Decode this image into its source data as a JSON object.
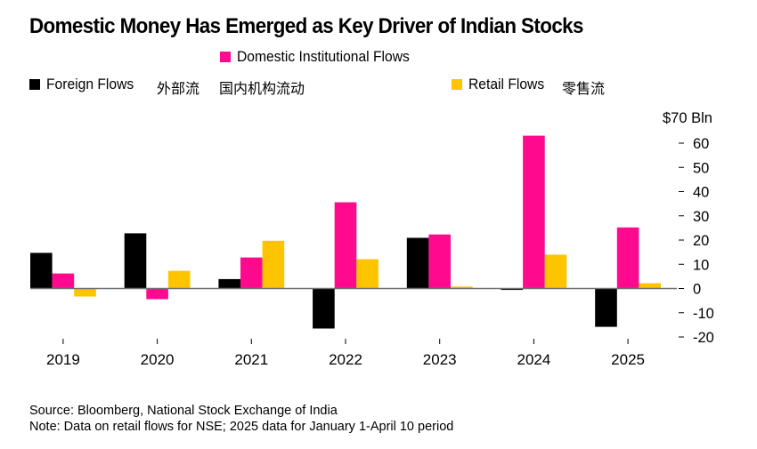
{
  "chart_data": {
    "type": "bar",
    "title": "Domestic Money Has Emerged as Key Driver of Indian Stocks",
    "categories": [
      "2019",
      "2020",
      "2021",
      "2022",
      "2023",
      "2024",
      "2025"
    ],
    "series": [
      {
        "name": "Foreign Flows",
        "name_cn": "外部流",
        "color": "#000000",
        "values": [
          14.7,
          22.8,
          3.9,
          -16.5,
          20.9,
          -0.6,
          -15.8
        ]
      },
      {
        "name": "Domestic Institutional Flows",
        "name_cn": "国内机构流动",
        "color": "#ff0a8f",
        "values": [
          6.2,
          -4.4,
          12.8,
          35.6,
          22.3,
          63.1,
          25.2
        ]
      },
      {
        "name": "Retail Flows",
        "name_cn": "零售流",
        "color": "#ffc400",
        "values": [
          -3.3,
          7.3,
          19.7,
          12.1,
          0.8,
          14.0,
          2.2
        ]
      }
    ],
    "xlabel": "",
    "ylabel": "$ Bln",
    "y_top_label": "$70 Bln",
    "ylim": [
      -20,
      70
    ],
    "yticks": [
      60,
      50,
      40,
      30,
      20,
      10,
      0,
      -10,
      -20
    ],
    "ytick_labels": [
      "60",
      "50",
      "40",
      "30",
      "20",
      "10",
      "0",
      "-10",
      "-20"
    ],
    "y_axis_side": "right",
    "grid": false,
    "legend_position": "top"
  },
  "legend": {
    "domestic": "Domestic Institutional Flows",
    "foreign": "Foreign Flows",
    "foreign_cn": "外部流",
    "domestic_cn": "国内机构流动",
    "retail": "Retail Flows",
    "retail_cn": "零售流"
  },
  "footer": {
    "source": "Source: Bloomberg, National Stock Exchange of India",
    "note": "Note: Data on retail flows for NSE; 2025 data for January 1-April 10 period"
  }
}
